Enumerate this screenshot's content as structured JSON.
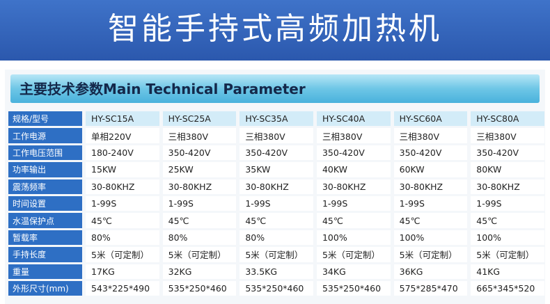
{
  "banner": {
    "title": "智能手持式高频加热机"
  },
  "section": {
    "title": "主要技术参数Main Technical Parameter"
  },
  "table": {
    "header_label": "规格/型号",
    "models": [
      "HY-SC15A",
      "HY-SC25A",
      "HY-SC35A",
      "HY-SC40A",
      "HY-SC60A",
      "HY-SC80A"
    ],
    "rows": [
      {
        "label": "工作电源",
        "values": [
          "单相220V",
          "三相380V",
          "三相380V",
          "三相380V",
          "三相380V",
          "三相380V"
        ]
      },
      {
        "label": "工作电压范围",
        "values": [
          "180-240V",
          "350-420V",
          "350-420V",
          "350-420V",
          "350-420V",
          "350-420V"
        ]
      },
      {
        "label": "功率输出",
        "values": [
          "15KW",
          "25KW",
          "35KW",
          "40KW",
          "60KW",
          "80KW"
        ]
      },
      {
        "label": "震荡频率",
        "values": [
          "30-80KHZ",
          "30-80KHZ",
          "30-80KHZ",
          "30-80KHZ",
          "30-80KHZ",
          "30-80KHZ"
        ]
      },
      {
        "label": "时间设置",
        "values": [
          "1-99S",
          "1-99S",
          "1-99S",
          "1-99S",
          "1-99S",
          "1-99S"
        ]
      },
      {
        "label": "水温保护点",
        "values": [
          "45℃",
          "45℃",
          "45℃",
          "45℃",
          "45℃",
          "45℃"
        ]
      },
      {
        "label": "暂载率",
        "values": [
          "80%",
          "80%",
          "80%",
          "100%",
          "100%",
          "100%"
        ]
      },
      {
        "label": "手持长度",
        "values": [
          "5米（可定制）",
          "5米（可定制）",
          "5米（可定制）",
          "5米（可定制）",
          "5米（可定制）",
          "5米（可定制）"
        ]
      },
      {
        "label": "重量",
        "values": [
          "17KG",
          "32KG",
          "33.5KG",
          "34KG",
          "36KG",
          "41KG"
        ]
      },
      {
        "label": "外形尺寸(mm)",
        "values": [
          "543*225*490",
          "535*250*460",
          "535*250*460",
          "535*250*460",
          "575*285*470",
          "665*345*520"
        ]
      }
    ]
  }
}
